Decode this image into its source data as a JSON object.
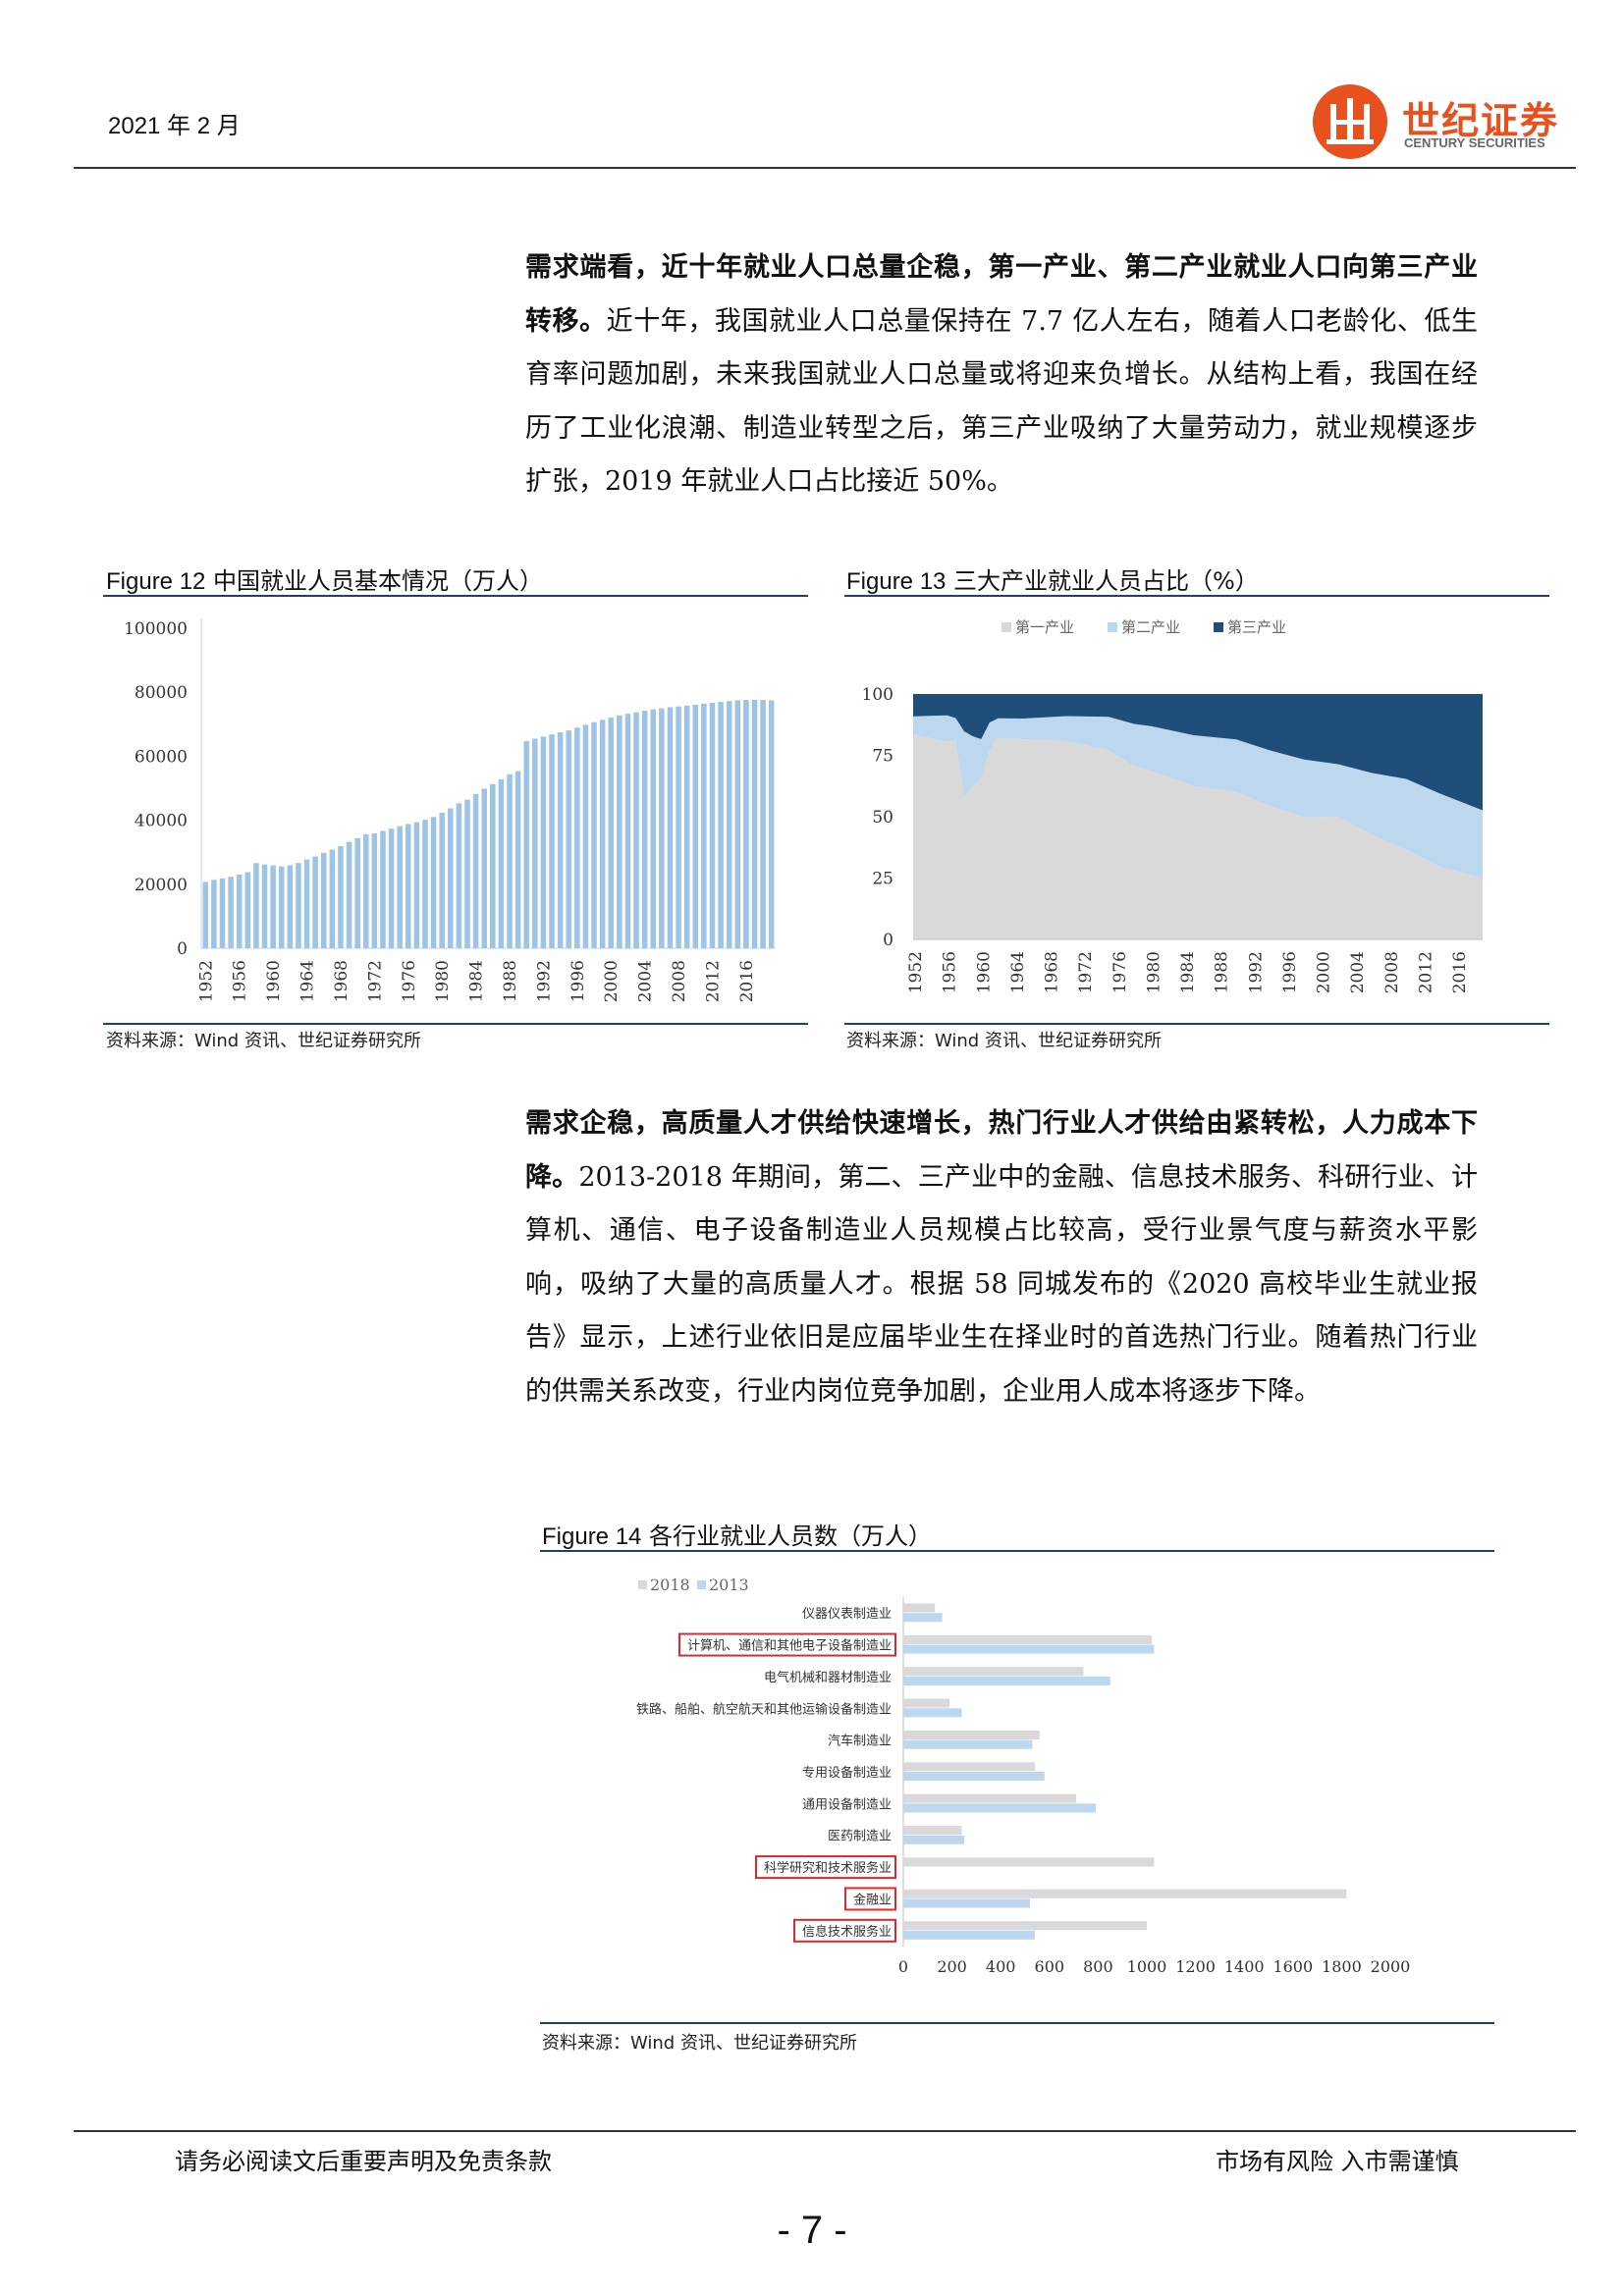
{
  "header": {
    "date": "2021 年 2 月",
    "logo_cn": "世纪证券",
    "logo_en": "CENTURY SECURITIES",
    "logo_color": "#e8501e"
  },
  "paragraphs": {
    "p1_bold": "需求端看，近十年就业人口总量企稳，第一产业、第二产业就业人口向第三产业转移。",
    "p1_rest": "近十年，我国就业人口总量保持在 7.7 亿人左右，随着人口老龄化、低生育率问题加剧，未来我国就业人口总量或将迎来负增长。从结构上看，我国在经历了工业化浪潮、制造业转型之后，第三产业吸纳了大量劳动力，就业规模逐步扩张，2019 年就业人口占比接近 50%。",
    "p2_bold": "需求企稳，高质量人才供给快速增长，热门行业人才供给由紧转松，人力成本下降。",
    "p2_rest": "2013-2018 年期间，第二、三产业中的金融、信息技术服务、科研行业、计算机、通信、电子设备制造业人员规模占比较高，受行业景气度与薪资水平影响，吸纳了大量的高质量人才。根据 58 同城发布的《2020 高校毕业生就业报告》显示，上述行业依旧是应届毕业生在择业时的首选热门行业。随着热门行业的供需关系改变，行业内岗位竞争加剧，企业用人成本将逐步下降。"
  },
  "figures": {
    "fig12": {
      "num": "Figure 12",
      "title": "中国就业人员基本情况（万人）",
      "source": "资料来源：Wind 资讯、世纪证券研究所"
    },
    "fig13": {
      "num": "Figure 13",
      "title": "三大产业就业人员占比（%）",
      "source": "资料来源：Wind 资讯、世纪证券研究所"
    },
    "fig14": {
      "num": "Figure 14",
      "title": "各行业就业人员数（万人）",
      "source": "资料来源：Wind 资讯、世纪证券研究所"
    }
  },
  "chart_data": [
    {
      "id": "fig12",
      "type": "bar",
      "title": "",
      "color": "#9dc3e6",
      "ylim": [
        0,
        100000
      ],
      "yticks": [
        0,
        20000,
        40000,
        60000,
        80000,
        100000
      ],
      "x_start": 1952,
      "x_tick_labels": [
        "1952",
        "1956",
        "1960",
        "1964",
        "1968",
        "1972",
        "1976",
        "1980",
        "1984",
        "1988",
        "1992",
        "1996",
        "2000",
        "2004",
        "2008",
        "2012",
        "2016"
      ],
      "values": [
        20729,
        21364,
        21832,
        22328,
        23018,
        23771,
        26600,
        26173,
        25880,
        25590,
        25910,
        26640,
        27736,
        28670,
        29805,
        30814,
        31915,
        33225,
        34432,
        35620,
        35854,
        36652,
        37369,
        38168,
        38834,
        39377,
        40152,
        41024,
        42361,
        43725,
        45295,
        46436,
        48197,
        49873,
        51282,
        52783,
        54334,
        55329,
        64749,
        65491,
        66152,
        66808,
        67455,
        68065,
        68950,
        69820,
        70637,
        71394,
        72085,
        72797,
        73280,
        73736,
        74264,
        74647,
        74978,
        75321,
        75564,
        75828,
        76105,
        76420,
        76704,
        76977,
        77253,
        77451,
        77603,
        77640,
        77586,
        77471
      ],
      "grid": false
    },
    {
      "id": "fig13",
      "type": "area",
      "title": "",
      "stacked": true,
      "ylim": [
        0,
        100
      ],
      "yticks": [
        0,
        25,
        50,
        75,
        100
      ],
      "x_tick_labels": [
        "1952",
        "1956",
        "1960",
        "1964",
        "1968",
        "1972",
        "1976",
        "1980",
        "1984",
        "1988",
        "1992",
        "1996",
        "2000",
        "2004",
        "2008",
        "2012",
        "2016"
      ],
      "legend_position": "top",
      "x": [
        1952,
        1956,
        1957,
        1958,
        1959,
        1960,
        1961,
        1962,
        1965,
        1970,
        1975,
        1978,
        1980,
        1985,
        1990,
        1994,
        1998,
        2002,
        2006,
        2010,
        2014,
        2019
      ],
      "series": [
        {
          "name": "第一产业",
          "color": "#d9d9d9",
          "values": [
            83.5,
            80.6,
            81.2,
            58.2,
            62.2,
            65.7,
            77.2,
            82.1,
            81.6,
            80.8,
            77.2,
            70.5,
            68.7,
            62.4,
            60.1,
            54.3,
            49.8,
            50.0,
            42.6,
            36.7,
            29.5,
            25.1
          ]
        },
        {
          "name": "第二产业",
          "color": "#bdd7ee",
          "values": [
            7.4,
            10.7,
            9.0,
            26.6,
            20.6,
            15.9,
            11.2,
            8.0,
            8.4,
            10.2,
            13.5,
            17.3,
            18.2,
            20.8,
            21.4,
            22.7,
            23.5,
            21.4,
            25.2,
            28.7,
            29.9,
            27.5
          ]
        },
        {
          "name": "第三产业",
          "color": "#1f4e79",
          "values": [
            9.1,
            8.7,
            9.8,
            15.2,
            17.2,
            18.4,
            11.6,
            9.9,
            10.0,
            9.0,
            9.3,
            12.2,
            13.1,
            16.8,
            18.5,
            23.0,
            26.7,
            28.6,
            32.2,
            34.6,
            40.6,
            47.4
          ]
        }
      ]
    },
    {
      "id": "fig14",
      "type": "bar",
      "orientation": "horizontal",
      "title": "",
      "xlim": [
        0,
        2000
      ],
      "xticks": [
        0,
        200,
        400,
        600,
        800,
        1000,
        1200,
        1400,
        1600,
        1800,
        2000
      ],
      "legend_position": "top",
      "categories": [
        "仪器仪表制造业",
        "计算机、通信和其他电子设备制造业",
        "电气机械和器材制造业",
        "铁路、船舶、航空航天和其他运输设备制造业",
        "汽车制造业",
        "专用设备制造业",
        "通用设备制造业",
        "医药制造业",
        "科学研究和技术服务业",
        "金融业",
        "信息技术服务业"
      ],
      "highlighted": [
        "计算机、通信和其他电子设备制造业",
        "科学研究和技术服务业",
        "金融业",
        "信息技术服务业"
      ],
      "highlight_color": "#d92b2b",
      "series": [
        {
          "name": "2018",
          "color": "#d9d9d9",
          "values": [
            130,
            1020,
            740,
            190,
            560,
            540,
            710,
            240,
            1030,
            1820,
            1000
          ]
        },
        {
          "name": "2013",
          "color": "#bdd7ee",
          "values": [
            160,
            1030,
            850,
            240,
            530,
            580,
            790,
            250,
            0,
            520,
            540
          ]
        }
      ]
    }
  ],
  "footer": {
    "left": "请务必阅读文后重要声明及免责条款",
    "right": "市场有风险 入市需谨慎",
    "page": "- 7 -"
  }
}
